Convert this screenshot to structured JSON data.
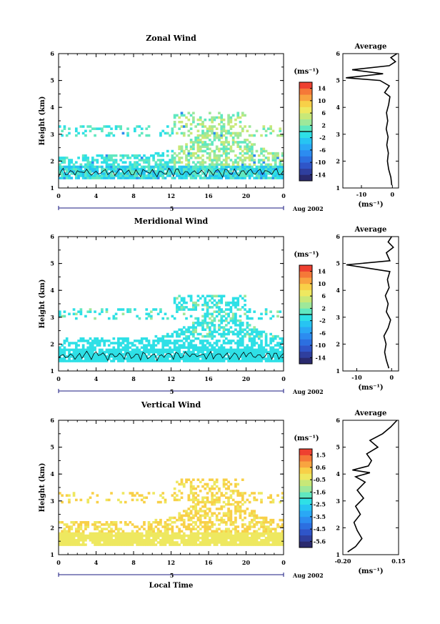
{
  "chart_data": [
    {
      "type": "heatmap",
      "title": "Zonal Wind",
      "ylabel": "Height (km)",
      "xlabel": "",
      "x_ticks": [
        "0",
        "4",
        "8",
        "12",
        "16",
        "20",
        "0"
      ],
      "y_ticks": [
        "1",
        "2",
        "3",
        "4",
        "5",
        "6"
      ],
      "ylim": [
        1,
        6
      ],
      "xlim": [
        0,
        24
      ],
      "date_label": "5",
      "month_label": "Aug 2002",
      "colorbar_unit": "(ms⁻¹)",
      "colorbar_ticks": [
        "14",
        "10",
        "6",
        "2",
        "-2",
        "-6",
        "-10",
        "-14"
      ],
      "colorbar_range": [
        -16,
        16
      ],
      "profile": {
        "title": "Average",
        "xlabel": "(ms⁻¹)",
        "x_ticks": [
          "-10",
          "0"
        ],
        "xlim": [
          -16,
          2
        ],
        "points": [
          [
            -0.2,
            1.1
          ],
          [
            -0.5,
            1.4
          ],
          [
            -1.2,
            1.7
          ],
          [
            -1.6,
            2.0
          ],
          [
            -1.3,
            2.3
          ],
          [
            -1.8,
            2.6
          ],
          [
            -1.4,
            2.9
          ],
          [
            -2.0,
            3.2
          ],
          [
            -1.5,
            3.5
          ],
          [
            -1.9,
            3.8
          ],
          [
            -1.2,
            4.1
          ],
          [
            -0.8,
            4.4
          ],
          [
            -2.5,
            4.55
          ],
          [
            -1.0,
            4.8
          ],
          [
            -4.0,
            5.0
          ],
          [
            -15.0,
            5.1
          ],
          [
            -3.0,
            5.25
          ],
          [
            -13.0,
            5.4
          ],
          [
            -1.0,
            5.55
          ],
          [
            1.0,
            5.7
          ],
          [
            -0.5,
            5.85
          ],
          [
            1.5,
            6.0
          ]
        ]
      }
    },
    {
      "type": "heatmap",
      "title": "Meridional Wind",
      "ylabel": "Height (km)",
      "xlabel": "",
      "x_ticks": [
        "0",
        "4",
        "8",
        "12",
        "16",
        "20",
        "0"
      ],
      "y_ticks": [
        "1",
        "2",
        "3",
        "4",
        "5",
        "6"
      ],
      "ylim": [
        1,
        6
      ],
      "xlim": [
        0,
        24
      ],
      "date_label": "5",
      "month_label": "Aug 2002",
      "colorbar_unit": "(ms⁻¹)",
      "colorbar_ticks": [
        "14",
        "10",
        "6",
        "2",
        "-2",
        "-6",
        "-10",
        "-14"
      ],
      "colorbar_range": [
        -16,
        16
      ],
      "profile": {
        "title": "Average",
        "xlabel": "(ms⁻¹)",
        "x_ticks": [
          "-10",
          "0"
        ],
        "xlim": [
          -14,
          2
        ],
        "points": [
          [
            -0.8,
            1.1
          ],
          [
            -1.5,
            1.4
          ],
          [
            -2.0,
            1.7
          ],
          [
            -1.6,
            2.0
          ],
          [
            -2.2,
            2.3
          ],
          [
            -1.0,
            2.6
          ],
          [
            -0.3,
            2.9
          ],
          [
            -1.5,
            3.2
          ],
          [
            -1.0,
            3.5
          ],
          [
            -1.8,
            3.8
          ],
          [
            -0.7,
            4.1
          ],
          [
            -1.2,
            4.4
          ],
          [
            -0.5,
            4.7
          ],
          [
            -13.0,
            4.95
          ],
          [
            -0.5,
            5.1
          ],
          [
            -1.5,
            5.4
          ],
          [
            0.5,
            5.6
          ],
          [
            -1.0,
            5.8
          ],
          [
            0.0,
            6.0
          ]
        ]
      }
    },
    {
      "type": "heatmap",
      "title": "Vertical Wind",
      "ylabel": "Height (km)",
      "xlabel": "Local Time",
      "x_ticks": [
        "0",
        "4",
        "8",
        "12",
        "16",
        "20",
        "0"
      ],
      "y_ticks": [
        "1",
        "2",
        "3",
        "4",
        "5",
        "6"
      ],
      "ylim": [
        1,
        6
      ],
      "xlim": [
        0,
        24
      ],
      "date_label": "5",
      "month_label": "Aug 2002",
      "colorbar_unit": "(ms⁻¹)",
      "colorbar_ticks": [
        "1.5",
        "0.6",
        "-0.5",
        "-1.6",
        "-2.5",
        "-3.5",
        "-4.5",
        "-5.6"
      ],
      "colorbar_range": [
        -6.0,
        2.0
      ],
      "profile": {
        "title": "Average",
        "xlabel": "(ms⁻¹)",
        "x_ticks": [
          "-0.20",
          "0.15"
        ],
        "xlim": [
          -0.2,
          0.15
        ],
        "points": [
          [
            -0.17,
            1.1
          ],
          [
            -0.12,
            1.3
          ],
          [
            -0.08,
            1.6
          ],
          [
            -0.11,
            1.9
          ],
          [
            -0.13,
            2.2
          ],
          [
            -0.09,
            2.5
          ],
          [
            -0.12,
            2.8
          ],
          [
            -0.07,
            3.1
          ],
          [
            -0.11,
            3.4
          ],
          [
            -0.06,
            3.7
          ],
          [
            -0.12,
            3.9
          ],
          [
            -0.03,
            4.05
          ],
          [
            -0.14,
            4.15
          ],
          [
            -0.04,
            4.3
          ],
          [
            -0.02,
            4.5
          ],
          [
            -0.05,
            4.75
          ],
          [
            0.02,
            5.0
          ],
          [
            -0.03,
            5.25
          ],
          [
            0.05,
            5.5
          ],
          [
            0.1,
            5.75
          ],
          [
            0.14,
            6.0
          ]
        ]
      }
    }
  ]
}
